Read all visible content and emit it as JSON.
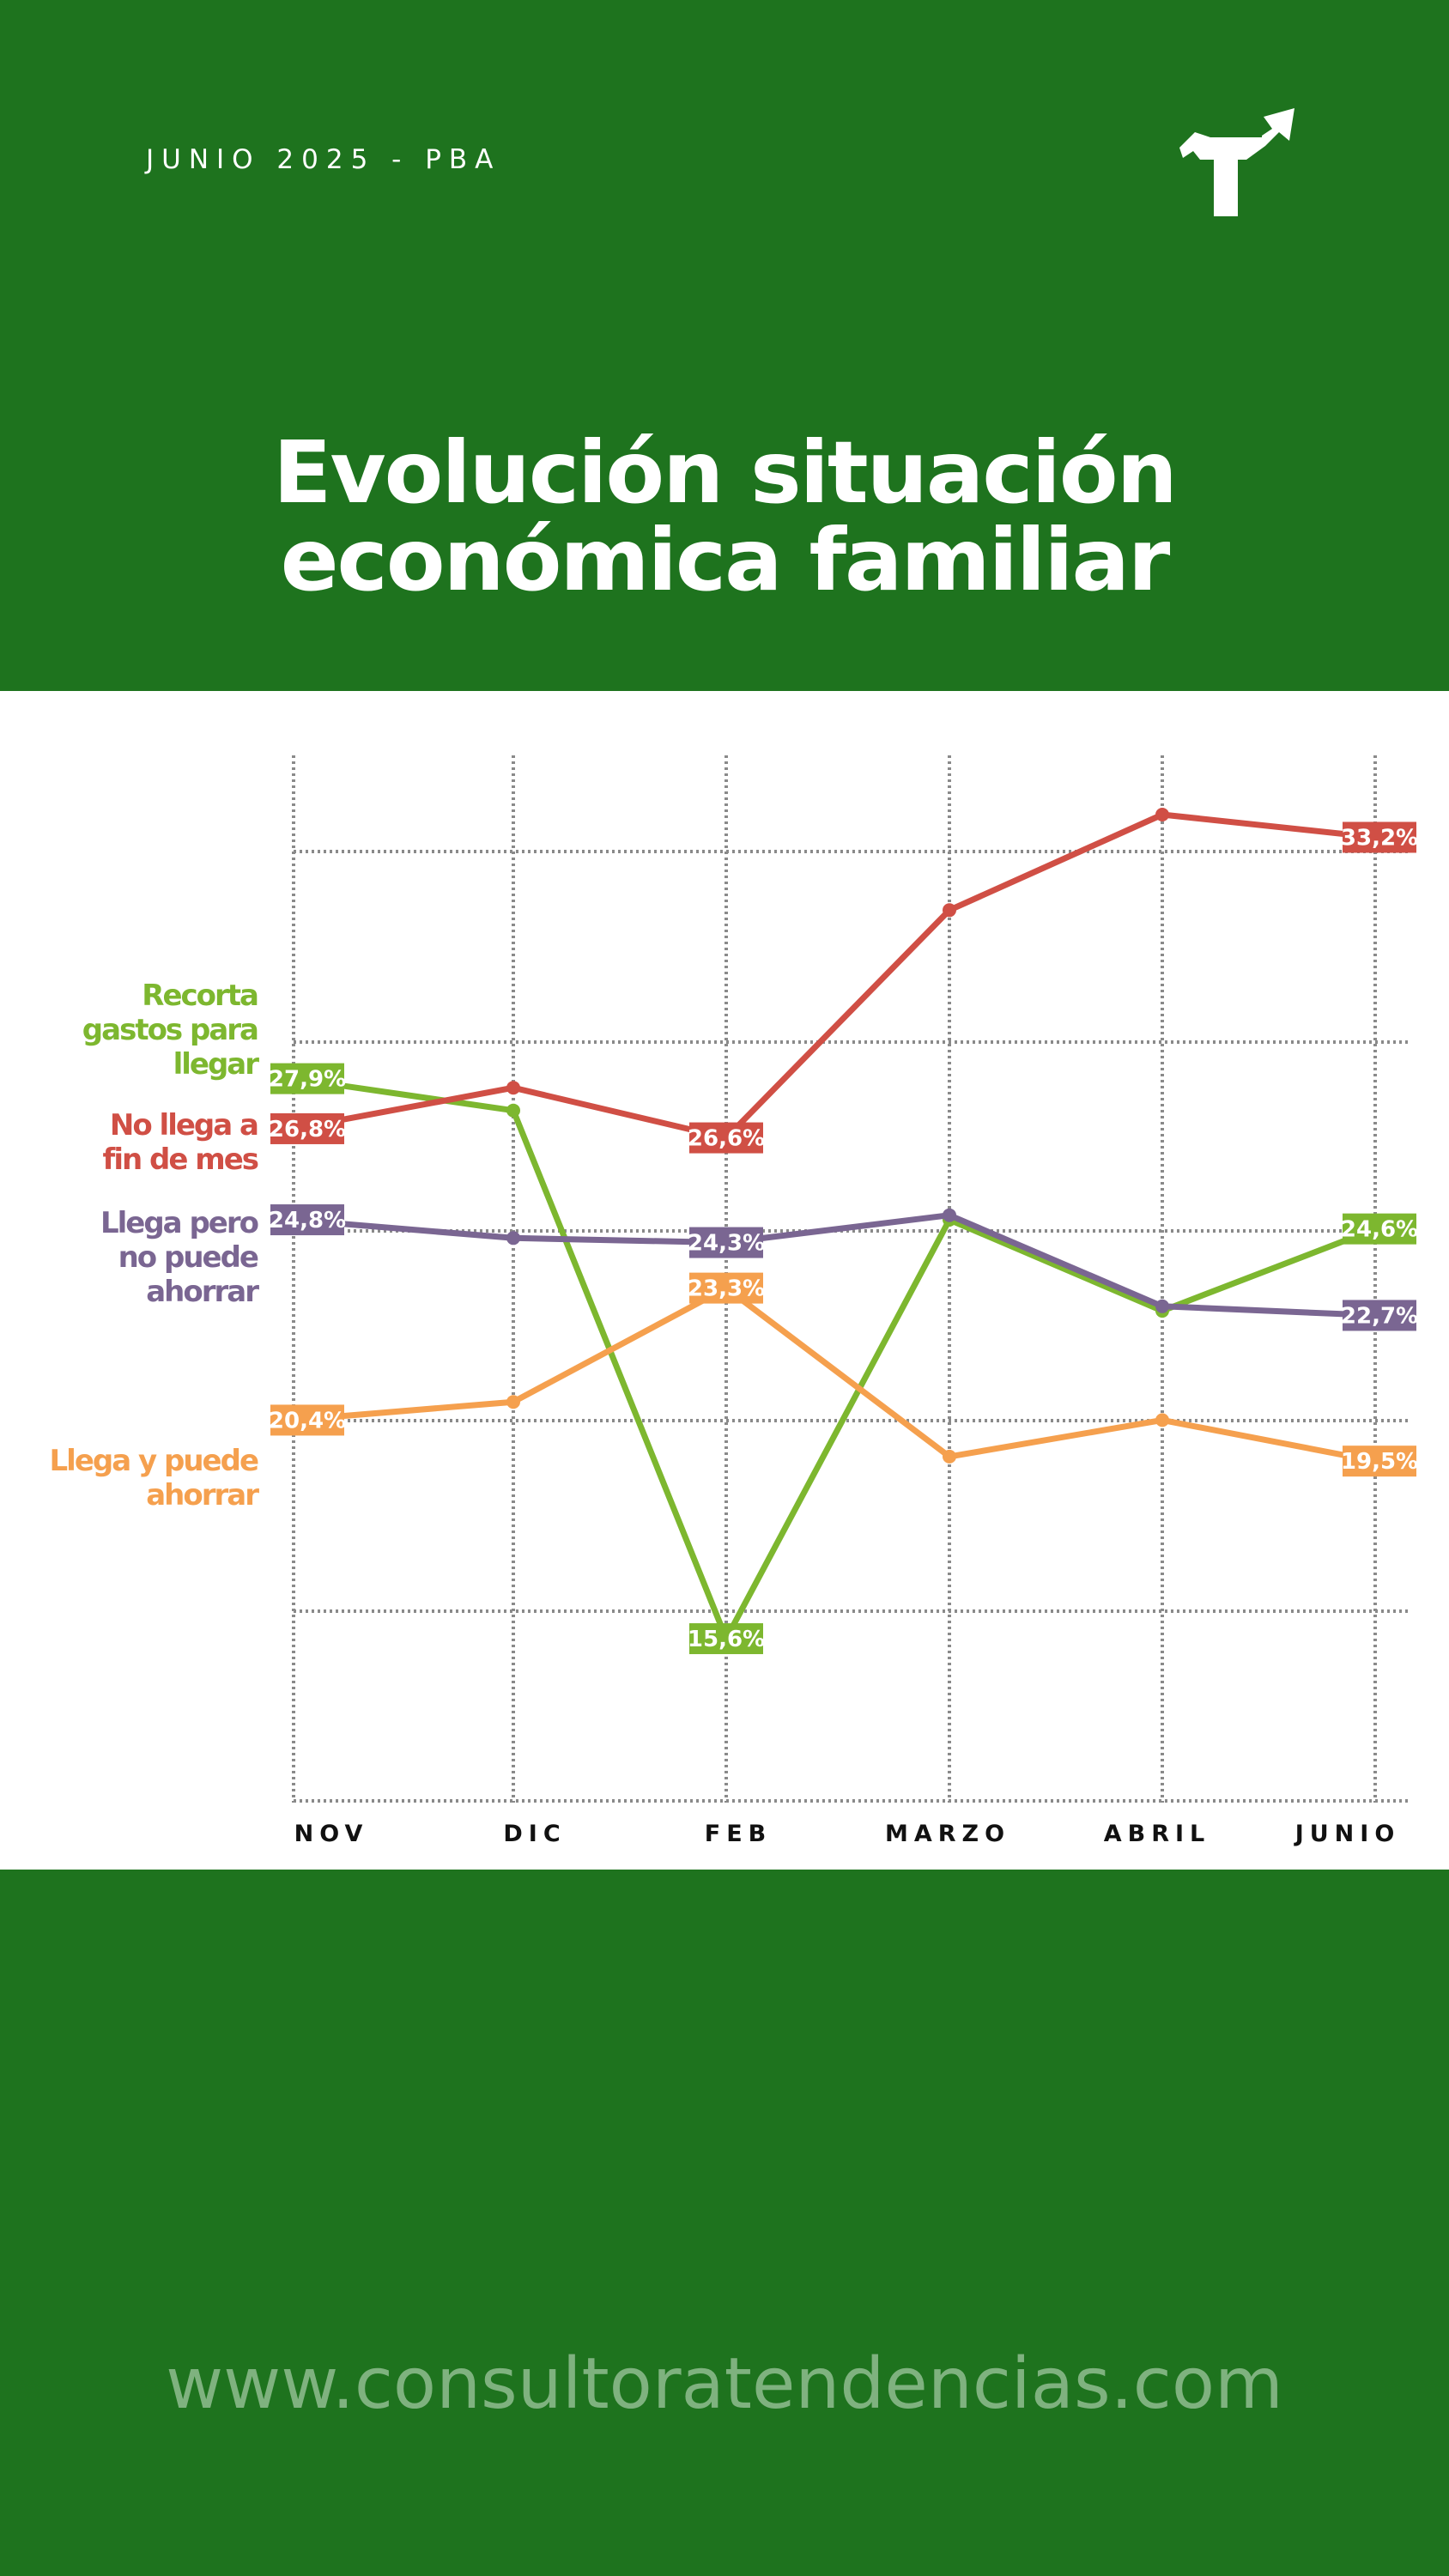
{
  "header": {
    "date_label": "JUNIO 2025 - PBA",
    "title_line1": "Evolución situación",
    "title_line2": "económica familiar"
  },
  "footer": {
    "url": "www.consultoratendencias.com"
  },
  "colors": {
    "background": "#1e731e",
    "recorta": "#7db72f",
    "no_llega": "#d04f45",
    "llega_no_ahorra": "#7a6692",
    "llega_ahorra": "#f5a04e"
  },
  "logo": {
    "icon": "arrow-turn-icon"
  },
  "chart_data": {
    "type": "line",
    "categories": [
      "NOV",
      "DIC",
      "FEB",
      "MARZO",
      "ABRIL",
      "JUNIO"
    ],
    "ylim": [
      12,
      35
    ],
    "grid": true,
    "series": [
      {
        "key": "recorta",
        "name_lines": [
          "Recorta",
          "gastos para",
          "llegar"
        ],
        "color": "#7db72f",
        "values": [
          27.9,
          27.2,
          15.6,
          24.8,
          22.8,
          24.6
        ],
        "labels": [
          "27,9%",
          "",
          "15,6%",
          "",
          "",
          "24,6%"
        ]
      },
      {
        "key": "no_llega",
        "name_lines": [
          "No llega a",
          "fin de mes"
        ],
        "color": "#d04f45",
        "values": [
          26.8,
          27.7,
          26.6,
          31.6,
          33.7,
          33.2
        ],
        "labels": [
          "26,8%",
          "",
          "26,6%",
          "",
          "",
          "33,2%"
        ]
      },
      {
        "key": "llega_no_ahorra",
        "name_lines": [
          "Llega pero",
          "no puede",
          "ahorrar"
        ],
        "color": "#7a6692",
        "values": [
          24.8,
          24.4,
          24.3,
          24.9,
          22.9,
          22.7
        ],
        "labels": [
          "24,8%",
          "",
          "24,3%",
          "",
          "",
          "22,7%"
        ]
      },
      {
        "key": "llega_ahorra",
        "name_lines": [
          "Llega y puede",
          "ahorrar"
        ],
        "color": "#f5a04e",
        "values": [
          20.4,
          20.8,
          23.3,
          19.6,
          20.4,
          19.5
        ],
        "labels": [
          "20,4%",
          "",
          "23,3%",
          "",
          "",
          "19,5%"
        ]
      }
    ]
  }
}
